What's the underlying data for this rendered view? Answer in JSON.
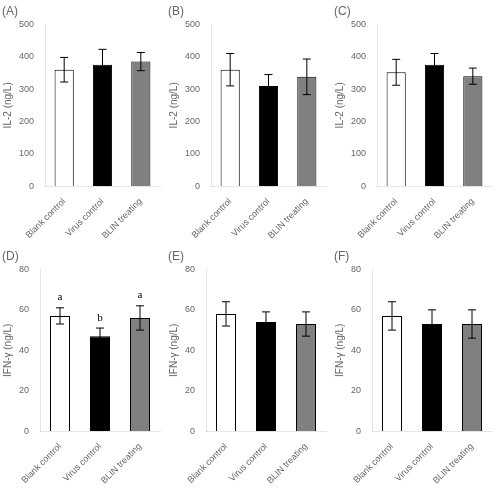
{
  "chart_data": [
    {
      "type": "bar",
      "title": "(A)",
      "ylabel": "IL-2 (ng/L)",
      "categories": [
        "Blank control",
        "Virus control",
        "BLIN treating"
      ],
      "values": [
        360,
        375,
        385
      ],
      "errors": [
        38,
        48,
        28
      ],
      "colors": [
        "white",
        "black",
        "#808080"
      ],
      "ylim": [
        0,
        500
      ],
      "yticks": [
        0,
        100,
        200,
        300,
        400,
        500
      ],
      "grid": false
    },
    {
      "type": "bar",
      "title": "(B)",
      "ylabel": "IL-2 (ng/L)",
      "categories": [
        "Blank control",
        "Virus control",
        "BLIN treating"
      ],
      "values": [
        360,
        310,
        338
      ],
      "errors": [
        50,
        35,
        55
      ],
      "colors": [
        "white",
        "black",
        "#808080"
      ],
      "ylim": [
        0,
        500
      ],
      "yticks": [
        0,
        100,
        200,
        300,
        400,
        500
      ],
      "grid": false
    },
    {
      "type": "bar",
      "title": "(C)",
      "ylabel": "IL-2 (ng/L)",
      "categories": [
        "Blank control",
        "Virus control",
        "BLIN treating"
      ],
      "values": [
        352,
        375,
        340
      ],
      "errors": [
        40,
        35,
        25
      ],
      "colors": [
        "white",
        "black",
        "#808080"
      ],
      "ylim": [
        0,
        500
      ],
      "yticks": [
        0,
        100,
        200,
        300,
        400,
        500
      ],
      "grid": false
    },
    {
      "type": "bar",
      "title": "(D)",
      "ylabel": "IFN-γ (ng/L)",
      "categories": [
        "Blank control",
        "Virus control",
        "BLIN treating"
      ],
      "values": [
        57,
        47,
        56
      ],
      "errors": [
        4,
        4,
        6
      ],
      "colors": [
        "white",
        "black",
        "#808080"
      ],
      "annotations": [
        {
          "x": "Blank control",
          "text": "a"
        },
        {
          "x": "Virus control",
          "text": "b"
        },
        {
          "x": "BLIN treating",
          "text": "a"
        }
      ],
      "ylim": [
        0,
        80
      ],
      "yticks": [
        0,
        20,
        40,
        60,
        80
      ],
      "grid": false
    },
    {
      "type": "bar",
      "title": "(E)",
      "ylabel": "IFN-γ (ng/L)",
      "categories": [
        "Blank control",
        "Virus control",
        "BLIN treating"
      ],
      "values": [
        58,
        54,
        53
      ],
      "errors": [
        6,
        5,
        6
      ],
      "colors": [
        "white",
        "black",
        "#808080"
      ],
      "ylim": [
        0,
        80
      ],
      "yticks": [
        0,
        20,
        40,
        60,
        80
      ],
      "grid": false
    },
    {
      "type": "bar",
      "title": "(F)",
      "ylabel": "IFN-γ (ng/L)",
      "categories": [
        "Blank control",
        "Virus control",
        "BLIN treating"
      ],
      "values": [
        57,
        53,
        53
      ],
      "errors": [
        7,
        7,
        7
      ],
      "colors": [
        "white",
        "black",
        "#808080"
      ],
      "ylim": [
        0,
        80
      ],
      "yticks": [
        0,
        20,
        40,
        60,
        80
      ],
      "grid": false
    }
  ]
}
